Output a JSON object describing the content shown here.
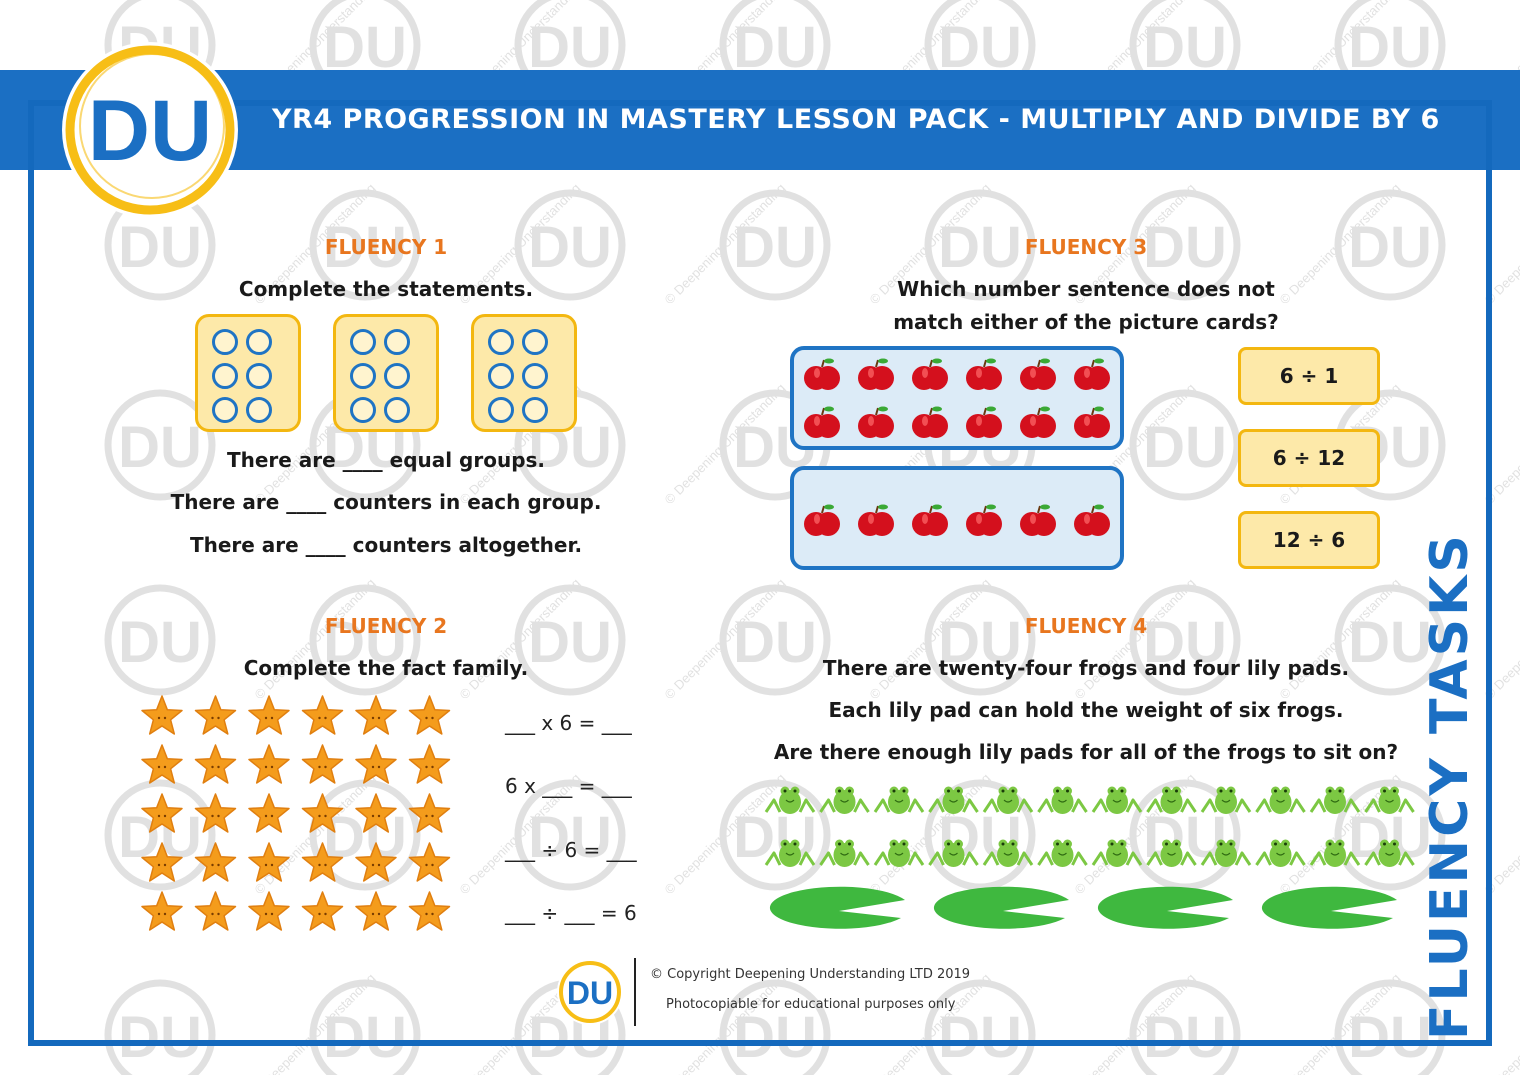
{
  "header": {
    "title": "YR4 PROGRESSION IN MASTERY LESSON PACK - MULTIPLY AND DIVIDE BY 6",
    "logo_text": "DU"
  },
  "side_label": "FLUENCY TASKS",
  "watermark": {
    "logo_text": "DU",
    "text": "© Deepening Understanding"
  },
  "fluency1": {
    "title": "FLUENCY 1",
    "instruction": "Complete the statements.",
    "dice_count": 3,
    "dots_per_die": 6,
    "statements": [
      "There are ____ equal groups.",
      "There are ____ counters in each group.",
      "There are ____ counters altogether."
    ]
  },
  "fluency2": {
    "title": "FLUENCY 2",
    "instruction": "Complete the fact family.",
    "star_rows": 5,
    "star_cols": 6,
    "equations": [
      "___ x 6 = ___",
      "6 x ___ = ___",
      "___ ÷ 6 = ___",
      "___ ÷ ___ = 6"
    ]
  },
  "fluency3": {
    "title": "FLUENCY 3",
    "question_line1": "Which number sentence does not",
    "question_line2": "match either of the picture cards?",
    "cards": [
      "6 ÷ 1",
      "6 ÷ 12",
      "12 ÷ 6"
    ],
    "picture_card_1_apples": 12,
    "picture_card_2_apples": 6
  },
  "fluency4": {
    "title": "FLUENCY 4",
    "lines": [
      "There are twenty-four frogs and four lily pads.",
      "Each lily pad can hold the weight of six frogs.",
      "Are there enough lily pads for all of the frogs to sit on?"
    ],
    "frogs": 24,
    "lily_pads": 4
  },
  "footer": {
    "logo_text": "DU",
    "copyright": "© Copyright Deepening Understanding LTD 2019",
    "note": "Photocopiable for educational purposes only"
  },
  "colors": {
    "brand_blue": "#1b6fc3",
    "brand_yellow": "#f7be16",
    "accent_orange": "#e8761f",
    "card_fill": "#fde9a9",
    "apple_red": "#d4101d",
    "star_orange": "#f49c1c",
    "frog_green": "#7cc843",
    "lily_green": "#3fb83f"
  }
}
